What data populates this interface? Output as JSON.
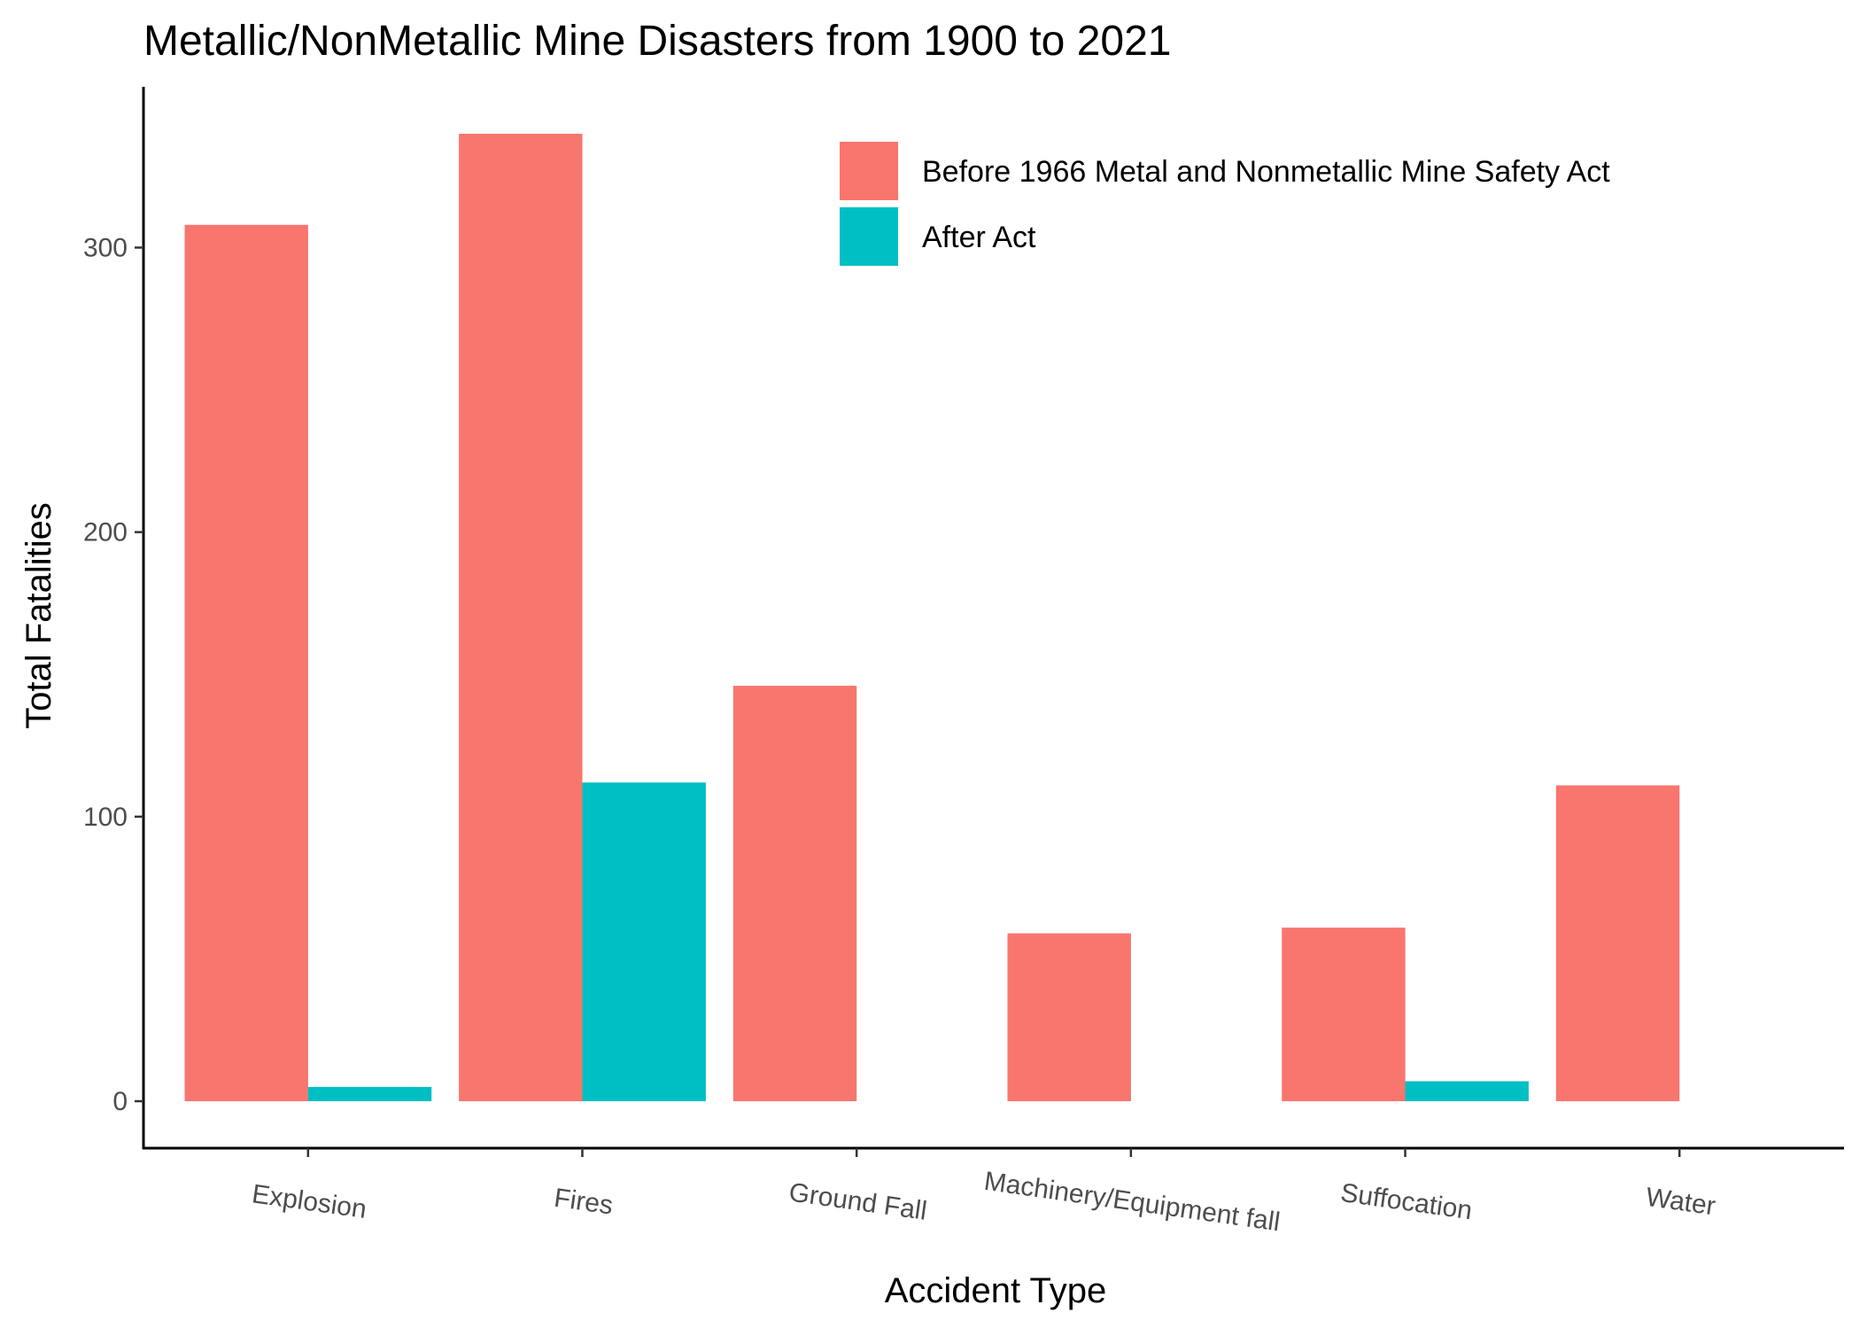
{
  "chart_data": {
    "type": "bar",
    "title": "Metallic/NonMetallic Mine Disasters from 1900 to 2021",
    "xlabel": "Accident Type",
    "ylabel": "Total Fatalities",
    "categories": [
      "Explosion",
      "Fires",
      "Ground Fall",
      "Machinery/Equipment fall",
      "Suffocation",
      "Water"
    ],
    "series": [
      {
        "name": "Before 1966 Metal and Nonmetallic Mine Safety Act",
        "color": "#F8766D",
        "values": [
          308,
          340,
          146,
          59,
          61,
          111
        ]
      },
      {
        "name": "After Act",
        "color": "#00BFC4",
        "values": [
          5,
          112,
          0,
          0,
          7,
          0
        ]
      }
    ],
    "yticks": [
      0,
      100,
      200,
      300
    ],
    "ylim": [
      -16.5,
      356.5
    ],
    "grid": false,
    "legend_position": "top-right"
  }
}
